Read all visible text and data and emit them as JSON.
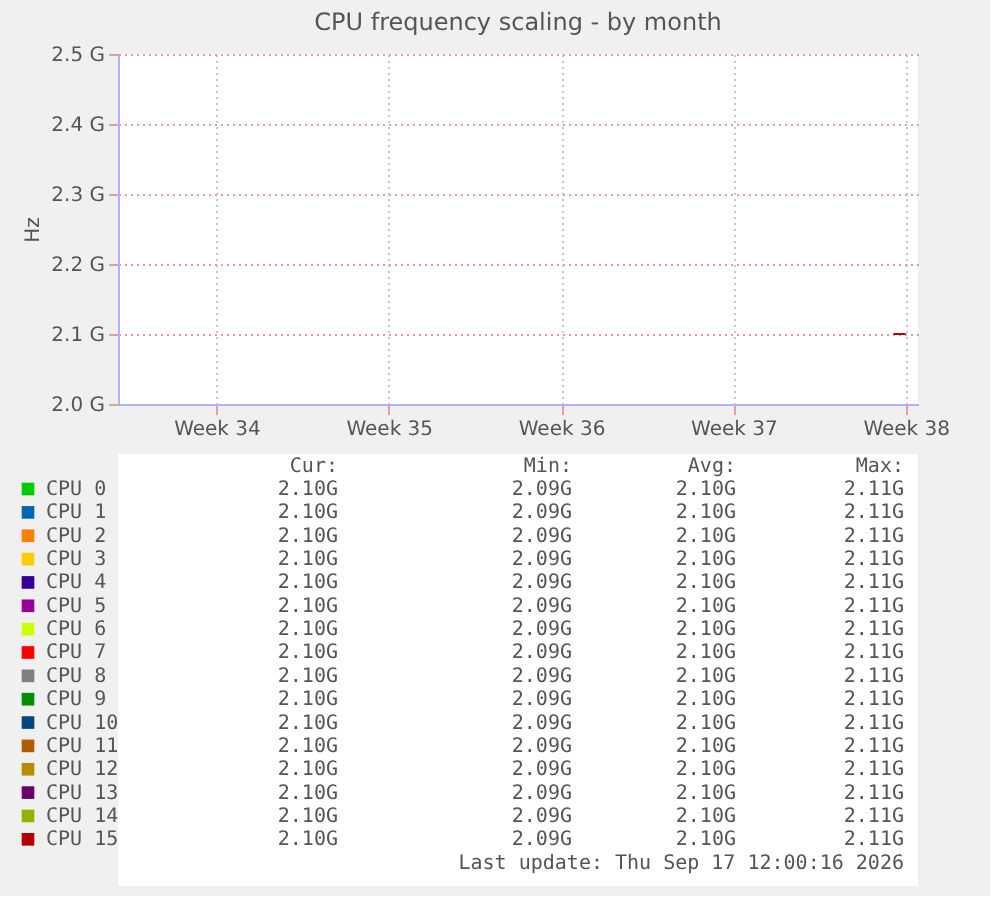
{
  "chart_data": {
    "type": "line",
    "title": "CPU frequency scaling - by month",
    "ylabel": "Hz",
    "x": [
      "2026-09-17T00:00",
      "2026-09-17T12:00"
    ],
    "xlim": [
      "2026-08-16T12:00",
      "2026-09-18T00:00"
    ],
    "xticks": [
      {
        "value": "2026-08-20T12:00",
        "label": "Week 34"
      },
      {
        "value": "2026-08-27T12:00",
        "label": "Week 35"
      },
      {
        "value": "2026-09-03T12:00",
        "label": "Week 36"
      },
      {
        "value": "2026-09-10T12:00",
        "label": "Week 37"
      },
      {
        "value": "2026-09-17T12:00",
        "label": "Week 38"
      }
    ],
    "ylim": [
      2.0,
      2.5
    ],
    "yticks": [
      {
        "value": 2.0,
        "label": "2.0 G"
      },
      {
        "value": 2.1,
        "label": "2.1 G"
      },
      {
        "value": 2.2,
        "label": "2.2 G"
      },
      {
        "value": 2.3,
        "label": "2.3 G"
      },
      {
        "value": 2.4,
        "label": "2.4 G"
      },
      {
        "value": 2.5,
        "label": "2.5 G"
      }
    ],
    "grid": true,
    "legend": "bottom",
    "series": [
      {
        "name": "CPU 0",
        "color": "#00cc00",
        "values": [
          null,
          null
        ]
      },
      {
        "name": "CPU 1",
        "color": "#0066b3",
        "values": [
          null,
          null
        ]
      },
      {
        "name": "CPU 2",
        "color": "#ff8000",
        "values": [
          null,
          null
        ]
      },
      {
        "name": "CPU 3",
        "color": "#ffcc00",
        "values": [
          null,
          null
        ]
      },
      {
        "name": "CPU 4",
        "color": "#330099",
        "values": [
          null,
          null
        ]
      },
      {
        "name": "CPU 5",
        "color": "#990099",
        "values": [
          null,
          null
        ]
      },
      {
        "name": "CPU 6",
        "color": "#ccff00",
        "values": [
          null,
          null
        ]
      },
      {
        "name": "CPU 7",
        "color": "#ff0000",
        "values": [
          null,
          null
        ]
      },
      {
        "name": "CPU 8",
        "color": "#808080",
        "values": [
          null,
          null
        ]
      },
      {
        "name": "CPU 9",
        "color": "#008f00",
        "values": [
          null,
          null
        ]
      },
      {
        "name": "CPU 10",
        "color": "#00487d",
        "values": [
          null,
          null
        ]
      },
      {
        "name": "CPU 11",
        "color": "#b35a00",
        "values": [
          null,
          null
        ]
      },
      {
        "name": "CPU 12",
        "color": "#b38f00",
        "values": [
          null,
          null
        ]
      },
      {
        "name": "CPU 13",
        "color": "#6b006b",
        "values": [
          null,
          null
        ]
      },
      {
        "name": "CPU 14",
        "color": "#8fb300",
        "values": [
          null,
          null
        ]
      },
      {
        "name": "CPU 15",
        "color": "#b30000",
        "values": [
          2.1,
          2.1
        ]
      }
    ],
    "annotations": [
      "Cur: Min: Avg: Max:",
      "2.10G 2.09G 2.10G 2.11G",
      "2.10G 2.09G 2.10G 2.11G",
      "2.10G 2.09G 2.10G 2.11G",
      "2.10G 2.09G 2.10G 2.11G",
      "2.10G 2.09G 2.10G 2.11G",
      "2.10G 2.09G 2.10G 2.11G",
      "2.10G 2.09G 2.10G 2.11G",
      "2.10G 2.09G 2.10G 2.11G",
      "2.10G 2.09G 2.10G 2.11G",
      "2.10G 2.09G 2.10G 2.11G",
      "2.10G 2.09G 2.10G 2.11G",
      "2.10G 2.09G 2.10G 2.11G",
      "2.10G 2.09G 2.10G 2.11G",
      "2.10G 2.09G 2.10G 2.11G",
      "2.10G 2.09G 2.10G 2.11G",
      "2.10G 2.09G 2.10G 2.11G",
      "Last update: Thu Sep 17 12:00:16 2026"
    ]
  }
}
